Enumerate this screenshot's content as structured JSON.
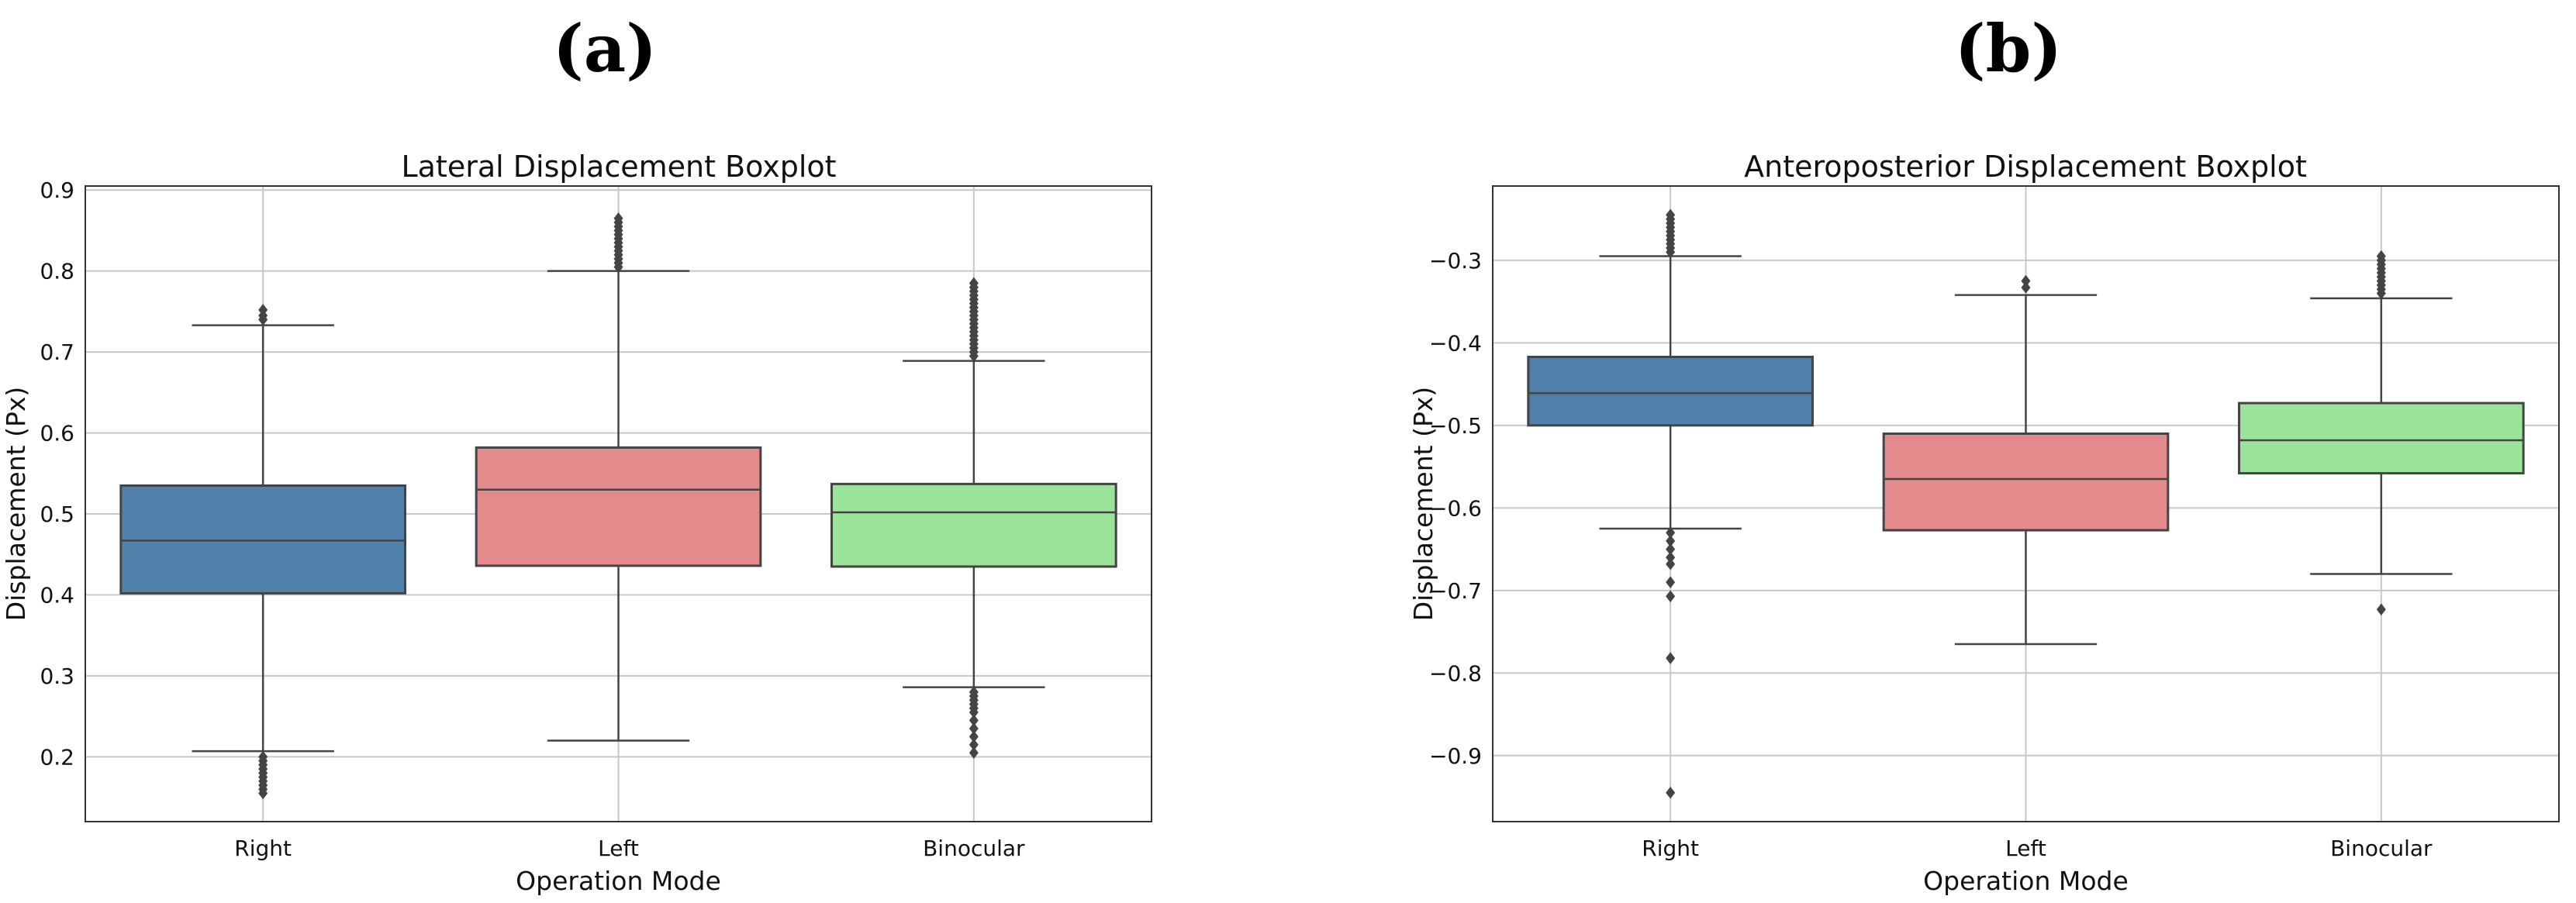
{
  "panels": [
    {
      "label": "(a)"
    },
    {
      "label": "(b)"
    }
  ],
  "chart_data": [
    {
      "type": "box",
      "title": "Lateral Displacement Boxplot",
      "xlabel": "Operation Mode",
      "ylabel": "Displacement (Px)",
      "ylim": [
        0.12,
        0.905
      ],
      "yticks": [
        0.2,
        0.3,
        0.4,
        0.5,
        0.6,
        0.7,
        0.8,
        0.9
      ],
      "ytick_labels": [
        "0.2",
        "0.3",
        "0.4",
        "0.5",
        "0.6",
        "0.7",
        "0.8",
        "0.9"
      ],
      "grid": true,
      "categories": [
        "Right",
        "Left",
        "Binocular"
      ],
      "colors": [
        "#5181aa",
        "#e38a8d",
        "#9be39b"
      ],
      "boxes": [
        {
          "q1": 0.402,
          "median": 0.467,
          "q3": 0.535,
          "whisker_low": 0.207,
          "whisker_high": 0.733,
          "outliers": [
            0.155,
            0.16,
            0.165,
            0.17,
            0.175,
            0.18,
            0.185,
            0.19,
            0.195,
            0.2,
            0.74,
            0.745,
            0.752
          ]
        },
        {
          "q1": 0.436,
          "median": 0.53,
          "q3": 0.582,
          "whisker_low": 0.22,
          "whisker_high": 0.8,
          "outliers": [
            0.805,
            0.81,
            0.815,
            0.82,
            0.825,
            0.83,
            0.835,
            0.84,
            0.845,
            0.85,
            0.855,
            0.86,
            0.865
          ]
        },
        {
          "q1": 0.435,
          "median": 0.502,
          "q3": 0.537,
          "whisker_low": 0.286,
          "whisker_high": 0.689,
          "outliers": [
            0.205,
            0.215,
            0.225,
            0.235,
            0.245,
            0.255,
            0.26,
            0.265,
            0.27,
            0.275,
            0.28,
            0.695,
            0.7,
            0.705,
            0.71,
            0.715,
            0.72,
            0.725,
            0.73,
            0.735,
            0.74,
            0.745,
            0.75,
            0.755,
            0.76,
            0.765,
            0.77,
            0.775,
            0.78,
            0.785
          ]
        }
      ]
    },
    {
      "type": "box",
      "title": "Anteroposterior Displacement Boxplot",
      "xlabel": "Operation Mode",
      "ylabel": "Displacement (Px)",
      "ylim": [
        -0.98,
        -0.21
      ],
      "yticks": [
        -0.9,
        -0.8,
        -0.7,
        -0.6,
        -0.5,
        -0.4,
        -0.3
      ],
      "ytick_labels": [
        "−0.9",
        "−0.8",
        "−0.7",
        "−0.6",
        "−0.5",
        "−0.4",
        "−0.3"
      ],
      "grid": true,
      "categories": [
        "Right",
        "Left",
        "Binocular"
      ],
      "colors": [
        "#5181aa",
        "#e38a8d",
        "#9be39b"
      ],
      "boxes": [
        {
          "q1": -0.5,
          "median": -0.461,
          "q3": -0.417,
          "whisker_low": -0.625,
          "whisker_high": -0.295,
          "outliers": [
            -0.945,
            -0.782,
            -0.707,
            -0.69,
            -0.668,
            -0.66,
            -0.65,
            -0.64,
            -0.63,
            -0.29,
            -0.285,
            -0.28,
            -0.275,
            -0.27,
            -0.265,
            -0.26,
            -0.255,
            -0.25,
            -0.245
          ]
        },
        {
          "q1": -0.627,
          "median": -0.565,
          "q3": -0.51,
          "whisker_low": -0.765,
          "whisker_high": -0.342,
          "outliers": [
            -0.333,
            -0.325
          ]
        },
        {
          "q1": -0.558,
          "median": -0.518,
          "q3": -0.473,
          "whisker_low": -0.68,
          "whisker_high": -0.346,
          "outliers": [
            -0.723,
            -0.34,
            -0.335,
            -0.33,
            -0.325,
            -0.32,
            -0.315,
            -0.31,
            -0.305,
            -0.3,
            -0.295
          ]
        }
      ]
    }
  ]
}
